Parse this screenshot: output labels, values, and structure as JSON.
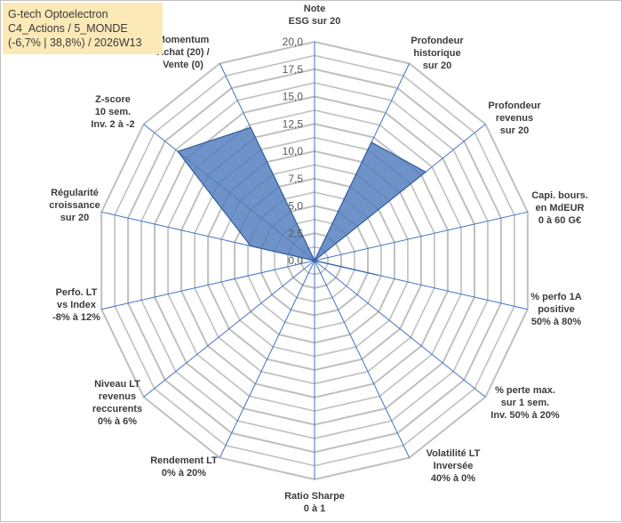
{
  "header": {
    "line1": "G-tech Optoelectron",
    "line2": "C4_Actions / 5_MONDE",
    "line3": "(-6,7% | 38,8%) / 2026W13"
  },
  "chart_data": {
    "type": "radar",
    "title": "G-tech Optoelectron",
    "rlim": [
      0,
      20
    ],
    "ticks": [
      0,
      2.5,
      5,
      7.5,
      10,
      12.5,
      15,
      17.5,
      20
    ],
    "tick_labels": [
      "0,0",
      "2,5",
      "5,0",
      "7,5",
      "10,0",
      "12,5",
      "15,0",
      "17,5",
      "20,0"
    ],
    "axes": [
      "Note\nESG sur 20",
      "Profondeur\nhistorique\nsur 20",
      "Profondeur\nrevenus\nsur 20",
      "Capi. bours.\nen MdEUR\n0 à 60 G€",
      "% perfo 1A\npositive\n50% à 80%",
      "% perte max.\nsur 1 sem.\nInv. 50% à 20%",
      "Volatilité LT\nInversée\n40% à 0%",
      "Ratio Sharpe\n0 à 1",
      "Rendement LT\n0% à 20%",
      "Niveau LT\nrevenus\nreccurents\n0% à 6%",
      "Perfo. LT\nvs Index\n-8% à 12%",
      "Régularité\ncroissance\nsur 20",
      "Z-score\n10 sem.\nInv. 2 à -2",
      "Momentum\nAchat (20) /\nVente (0)"
    ],
    "series": [
      {
        "name": "G-tech Optoelectron",
        "values": [
          0,
          12,
          13,
          0,
          6,
          0,
          0,
          0,
          0,
          0,
          0,
          6,
          16,
          13.5
        ]
      }
    ],
    "colors": {
      "fill": "#4f7bbd",
      "outline": "#2f5f9e",
      "grid": "#bfbfbf",
      "spoke": "#4472c4"
    }
  }
}
